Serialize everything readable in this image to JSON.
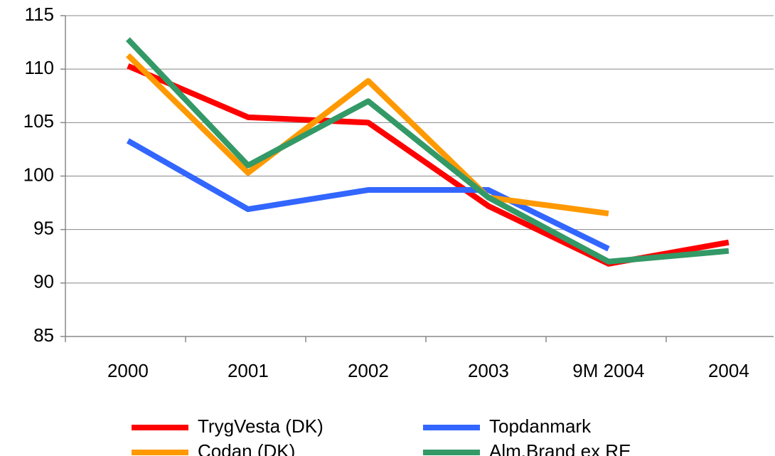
{
  "chart_data": {
    "type": "line",
    "categories": [
      "2000",
      "2001",
      "2002",
      "2003",
      "9M 2004",
      "2004"
    ],
    "series": [
      {
        "name": "TrygVesta (DK)",
        "color": "#ff0000",
        "values": [
          110.3,
          105.5,
          105.0,
          97.2,
          91.8,
          93.8
        ]
      },
      {
        "name": "Topdanmark",
        "color": "#3366ff",
        "values": [
          103.3,
          96.9,
          98.7,
          98.7,
          93.2,
          null
        ]
      },
      {
        "name": "Codan (DK)",
        "color": "#ff9900",
        "values": [
          111.3,
          100.3,
          108.9,
          98.0,
          96.5,
          null
        ]
      },
      {
        "name": "Alm.Brand ex RE",
        "color": "#339966",
        "values": [
          112.8,
          101.0,
          107.0,
          98.0,
          92.0,
          93.0
        ]
      }
    ],
    "ylim": [
      85,
      115
    ],
    "yticks": [
      85,
      90,
      95,
      100,
      105,
      110,
      115
    ],
    "grid": true
  }
}
